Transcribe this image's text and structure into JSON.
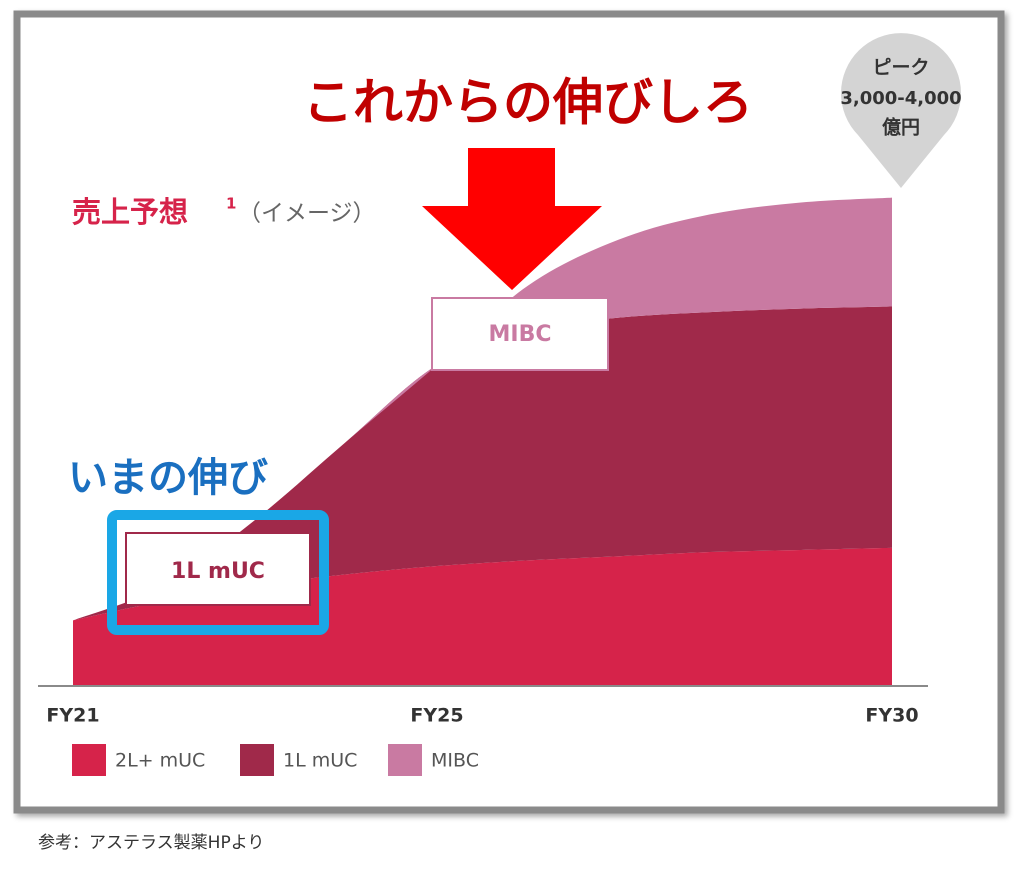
{
  "chart_data": {
    "type": "stacked-area",
    "title": "売上予想",
    "title_note": "1",
    "subtitle": "（イメージ）",
    "x": [
      21,
      22,
      23,
      24,
      25,
      26,
      27,
      28,
      29,
      30
    ],
    "xlim": [
      21,
      30
    ],
    "xticks": [
      {
        "value": 21,
        "label": "FY21"
      },
      {
        "value": 25,
        "label": "FY25"
      },
      {
        "value": 30,
        "label": "FY30"
      }
    ],
    "ylim": [
      0,
      4200
    ],
    "series": [
      {
        "name": "2L+ mUC",
        "color": "#d6234a",
        "values": [
          470,
          610,
          720,
          800,
          860,
          900,
          930,
          960,
          975,
          990
        ]
      },
      {
        "name": "1L mUC",
        "color": "#a0294a",
        "values": [
          0,
          110,
          470,
          950,
          1440,
          1650,
          1710,
          1720,
          1730,
          1730
        ]
      },
      {
        "name": "MIBC",
        "color": "#c97aa2",
        "values": [
          0,
          0,
          0,
          0,
          0,
          320,
          560,
          700,
          760,
          780
        ]
      }
    ],
    "annotations": {
      "future_growth": "これからの伸びしろ",
      "current_growth": "いまの伸び",
      "peak_title": "ピーク",
      "peak_range": "3,000-4,000",
      "peak_unit": "億円"
    },
    "source": "参考：アステラス製薬HPより"
  }
}
